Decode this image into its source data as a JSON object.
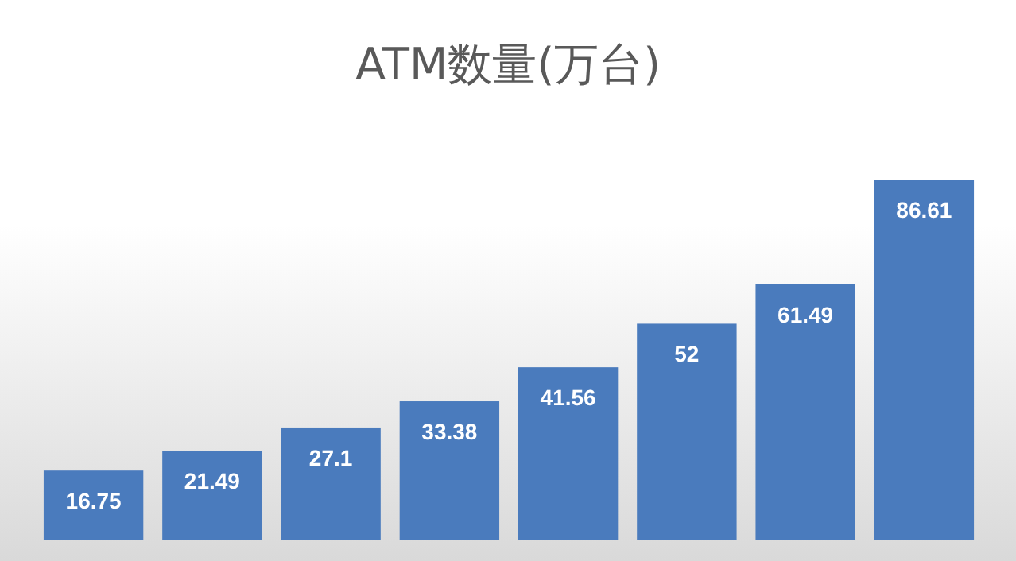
{
  "chart_data": {
    "type": "bar",
    "title": "ATM数量(万台)",
    "categories": [
      null,
      null,
      null,
      null,
      null,
      null,
      null,
      null
    ],
    "values": [
      16.75,
      21.49,
      27.1,
      33.38,
      41.56,
      52,
      61.49,
      86.61
    ],
    "color": "#4a7bbd",
    "data_labels": true
  }
}
